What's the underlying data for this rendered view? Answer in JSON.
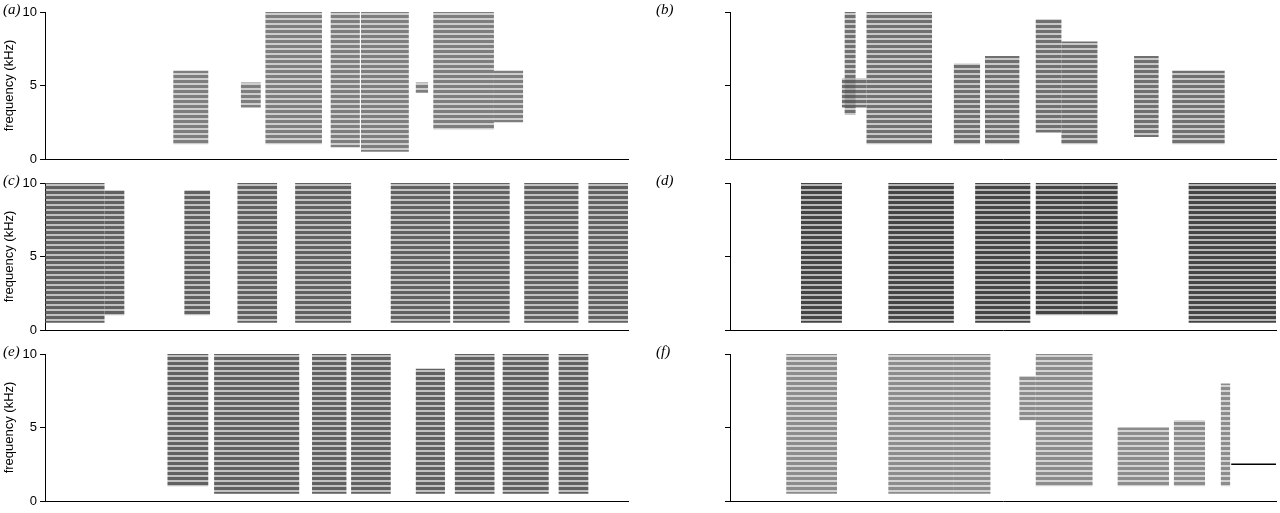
{
  "chart_data": [
    {
      "type": "spectrogram",
      "title": "(a)",
      "y_label": "frequency (kHz)",
      "xlim": [
        0,
        100
      ],
      "ylim": [
        0,
        10
      ],
      "yticks": [
        0,
        5,
        10
      ],
      "tick_labels": "y",
      "grid": false,
      "color": "#707070",
      "syllables": [
        {
          "x": [
            22,
            28
          ],
          "y": [
            1,
            6
          ]
        },
        {
          "x": [
            33.6,
            37
          ],
          "y": [
            3.5,
            5.2
          ]
        },
        {
          "x": [
            37.8,
            47.5
          ],
          "y": [
            1,
            10
          ]
        },
        {
          "x": [
            49,
            54
          ],
          "y": [
            0.8,
            10
          ]
        },
        {
          "x": [
            54.2,
            62.4
          ],
          "y": [
            0.5,
            10
          ]
        },
        {
          "x": [
            63.6,
            65.7
          ],
          "y": [
            4.5,
            5.2
          ]
        },
        {
          "x": [
            66.6,
            77
          ],
          "y": [
            2,
            10
          ]
        },
        {
          "x": [
            77,
            82
          ],
          "y": [
            2.5,
            6
          ]
        }
      ]
    },
    {
      "type": "spectrogram",
      "title": "(b)",
      "xlim": [
        0,
        100
      ],
      "ylim": [
        0,
        10
      ],
      "yticks": [
        0,
        5,
        10
      ],
      "tick_labels": false,
      "grid": false,
      "color": "#606060",
      "syllables": [
        {
          "x": [
            20.5,
            25
          ],
          "y": [
            3.5,
            5.5
          ]
        },
        {
          "x": [
            21,
            23
          ],
          "y": [
            3,
            10
          ]
        },
        {
          "x": [
            25,
            37
          ],
          "y": [
            1,
            10
          ]
        },
        {
          "x": [
            41,
            45.8
          ],
          "y": [
            1,
            6.5
          ]
        },
        {
          "x": [
            46.7,
            53
          ],
          "y": [
            1,
            7
          ]
        },
        {
          "x": [
            56,
            60.7
          ],
          "y": [
            1.8,
            9.5
          ]
        },
        {
          "x": [
            60.7,
            67.3
          ],
          "y": [
            1,
            8
          ]
        },
        {
          "x": [
            74,
            78.5
          ],
          "y": [
            1.5,
            7
          ]
        },
        {
          "x": [
            81,
            90.6
          ],
          "y": [
            1,
            6
          ]
        }
      ]
    },
    {
      "type": "spectrogram",
      "title": "(c)",
      "y_label": "frequency (kHz)",
      "xlim": [
        0,
        100
      ],
      "ylim": [
        0,
        10
      ],
      "yticks": [
        0,
        5,
        10
      ],
      "tick_labels": "y",
      "grid": false,
      "color": "#505050",
      "syllables": [
        {
          "x": [
            0,
            10.2
          ],
          "y": [
            0.5,
            10
          ]
        },
        {
          "x": [
            10.2,
            13.6
          ],
          "y": [
            1,
            9.5
          ]
        },
        {
          "x": [
            23.9,
            28.3
          ],
          "y": [
            1,
            9.5
          ]
        },
        {
          "x": [
            33,
            39.8
          ],
          "y": [
            0.5,
            10
          ]
        },
        {
          "x": [
            42.9,
            52.5
          ],
          "y": [
            0.5,
            10
          ]
        },
        {
          "x": [
            59.3,
            69.5
          ],
          "y": [
            0.5,
            10
          ]
        },
        {
          "x": [
            70,
            79.7
          ],
          "y": [
            0.5,
            10
          ]
        },
        {
          "x": [
            82.2,
            91.5
          ],
          "y": [
            0.5,
            10
          ]
        },
        {
          "x": [
            93.2,
            100
          ],
          "y": [
            0.5,
            10
          ]
        }
      ]
    },
    {
      "type": "spectrogram",
      "title": "(d)",
      "xlim": [
        0,
        100
      ],
      "ylim": [
        0,
        10
      ],
      "yticks": [
        0,
        5,
        10
      ],
      "tick_labels": false,
      "grid": false,
      "color": "#303030",
      "syllables": [
        {
          "x": [
            13,
            20.5
          ],
          "y": [
            0.5,
            10
          ]
        },
        {
          "x": [
            29,
            41
          ],
          "y": [
            0.5,
            10
          ]
        },
        {
          "x": [
            44.9,
            55
          ],
          "y": [
            0.5,
            10
          ]
        },
        {
          "x": [
            56,
            64.5
          ],
          "y": [
            1,
            10
          ]
        },
        {
          "x": [
            64.5,
            71
          ],
          "y": [
            1,
            10
          ]
        },
        {
          "x": [
            84,
            100
          ],
          "y": [
            0.5,
            10
          ]
        }
      ]
    },
    {
      "type": "spectrogram",
      "title": "(e)",
      "y_label": "frequency (kHz)",
      "xlim": [
        0,
        100
      ],
      "ylim": [
        0,
        10
      ],
      "yticks": [
        0,
        5,
        10
      ],
      "tick_labels": "y",
      "grid": false,
      "color": "#505050",
      "syllables": [
        {
          "x": [
            21,
            28
          ],
          "y": [
            1,
            10
          ]
        },
        {
          "x": [
            29,
            43.6
          ],
          "y": [
            0.5,
            10
          ]
        },
        {
          "x": [
            45.8,
            51.7
          ],
          "y": [
            0.5,
            10
          ]
        },
        {
          "x": [
            52.5,
            59.3
          ],
          "y": [
            0.5,
            10
          ]
        },
        {
          "x": [
            63.6,
            68.6
          ],
          "y": [
            0.5,
            9
          ]
        },
        {
          "x": [
            70.3,
            77.1
          ],
          "y": [
            0.5,
            10
          ]
        },
        {
          "x": [
            78.5,
            86.4
          ],
          "y": [
            0.5,
            10
          ]
        },
        {
          "x": [
            88.1,
            93.2
          ],
          "y": [
            0.5,
            10
          ]
        }
      ]
    },
    {
      "type": "spectrogram",
      "title": "(f)",
      "xlim": [
        0,
        100
      ],
      "ylim": [
        0,
        10
      ],
      "yticks": [
        0,
        5,
        10
      ],
      "tick_labels": false,
      "grid": false,
      "color": "#808080",
      "syllables": [
        {
          "x": [
            10.3,
            19.6
          ],
          "y": [
            0.5,
            10
          ]
        },
        {
          "x": [
            29,
            41
          ],
          "y": [
            0.5,
            10
          ]
        },
        {
          "x": [
            41,
            47.7
          ],
          "y": [
            0.5,
            10
          ]
        },
        {
          "x": [
            53,
            56
          ],
          "y": [
            5.5,
            8.5
          ]
        },
        {
          "x": [
            56,
            66.4
          ],
          "y": [
            1,
            10
          ]
        },
        {
          "x": [
            71,
            80.4
          ],
          "y": [
            1,
            5
          ]
        },
        {
          "x": [
            81.3,
            87
          ],
          "y": [
            1,
            5.5
          ]
        },
        {
          "x": [
            89.9,
            91.6
          ],
          "y": [
            1,
            8
          ]
        }
      ],
      "scale_bar": {
        "x": [
          91.8,
          100
        ],
        "y": 2.5
      }
    }
  ]
}
